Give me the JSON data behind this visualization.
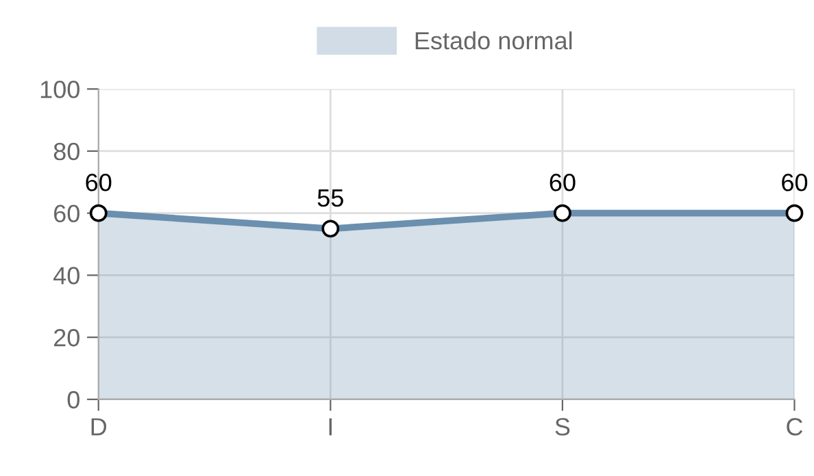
{
  "chart_data": {
    "type": "area",
    "categories": [
      "D",
      "I",
      "S",
      "C"
    ],
    "series": [
      {
        "name": "Estado normal",
        "color": "#6b8fae",
        "values": [
          60,
          55,
          60,
          60
        ]
      }
    ],
    "ylim": [
      0,
      100
    ],
    "yticks": [
      0,
      20,
      40,
      60,
      80,
      100
    ],
    "grid": true,
    "legend": "top",
    "data_labels": true,
    "marker": "circle",
    "line_style": "solid"
  }
}
